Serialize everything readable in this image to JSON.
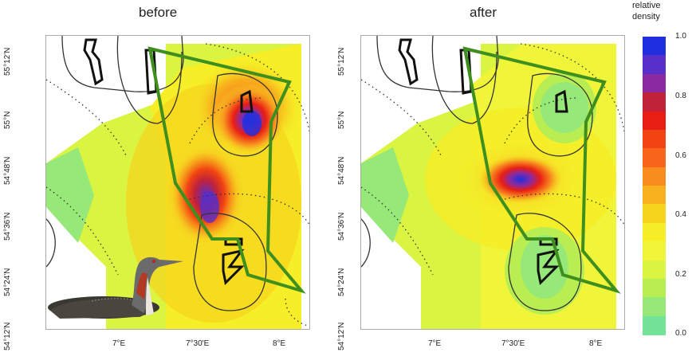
{
  "panels": [
    {
      "title": "before",
      "y_ticks": [
        "55°12'N",
        "55°N",
        "54°48'N",
        "54°36'N",
        "54°24'N",
        "54°12'N"
      ],
      "x_ticks": [
        "7°E",
        "7°30'E",
        "8°E"
      ]
    },
    {
      "title": "after",
      "y_ticks": [
        "55°12'N",
        "55°N",
        "54°48'N",
        "54°36'N",
        "54°24'N",
        "54°12'N"
      ],
      "x_ticks": [
        "7°E",
        "7°30'E",
        "8°E"
      ]
    }
  ],
  "legend": {
    "title_line1": "relative",
    "title_line2": "density",
    "ticks": [
      "1.0",
      "0.8",
      "0.6",
      "0.4",
      "0.2",
      "0.0"
    ],
    "colors": [
      "#1f2fe0",
      "#5630c9",
      "#8b2aa0",
      "#c0223a",
      "#e81e14",
      "#f24412",
      "#f6651a",
      "#f88d1e",
      "#f8b01c",
      "#f6d31c",
      "#f6ee26",
      "#f0f53a",
      "#daf442",
      "#b8ee52",
      "#96e878",
      "#74e39a"
    ]
  },
  "colors": {
    "boundary": "#3f8f1f",
    "contour": "#333333",
    "dotted": "#333333"
  }
}
